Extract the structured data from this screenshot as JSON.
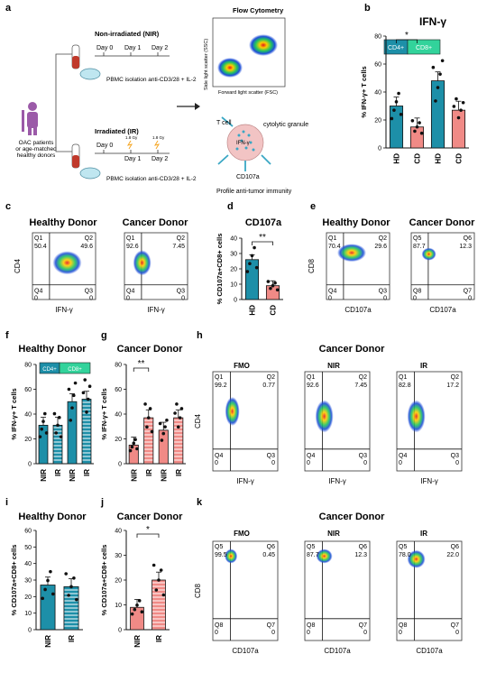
{
  "panel_letters": {
    "a": "a",
    "b": "b",
    "c": "c",
    "d": "d",
    "e": "e",
    "f": "f",
    "g": "g",
    "h": "h",
    "i": "i",
    "j": "j",
    "k": "k"
  },
  "panel_a": {
    "patients": "OAC patients\nor age-matched\nhealthy donors",
    "nir_title": "Non-irradiated (NIR)",
    "ir_title": "Irradiated (IR)",
    "days": [
      "Day 0",
      "Day 1",
      "Day 2"
    ],
    "dose": "1.8 Gy",
    "pbmc": "PBMC isolation anti-CD3/28 + IL-2",
    "flow_title": "Flow Cytometry",
    "ssc": "Side light scatter (SSC)",
    "fsc": "Forward light scatter (FSC)",
    "tcell": "T cell",
    "ifng": "IFN-γ",
    "granule": "cytolytic granule",
    "cd107a": "CD107a",
    "profile": "Profile anti-tumor immunity"
  },
  "texts": {
    "ifng_title": "IFN-γ",
    "healthy": "Healthy Donor",
    "cancer": "Cancer Donor",
    "cd107a_title": "CD107a",
    "cd4_tag": "CD4+",
    "cd8_tag": "CD8+",
    "fmo": "FMO",
    "nir": "NIR",
    "ir": "IR"
  },
  "flow_labels": {
    "q1": "Q1",
    "q2": "Q2",
    "q3": "Q3",
    "q4": "Q4",
    "q5": "Q5",
    "q6": "Q6",
    "q7": "Q7",
    "q8": "Q8",
    "cd4": "CD4",
    "cd8": "CD8",
    "ifng_axis": "IFN-γ",
    "cd107a_axis": "CD107a"
  },
  "flow_plots": {
    "c_hd": {
      "q1": "50.4",
      "q2": "49.6",
      "q3": "0",
      "q4": "0"
    },
    "c_cd": {
      "q1": "92.6",
      "q2": "7.45",
      "q3": "0",
      "q4": "0"
    },
    "e_hd": {
      "q1": "70.4",
      "q2": "29.6",
      "q3": "0",
      "q4": "0"
    },
    "e_cd": {
      "q1": "87.7",
      "q2": "12.3",
      "q3": "0",
      "q4": "0"
    },
    "h_fmo": {
      "q1": "99.2",
      "q2": "0.77",
      "q3": "0",
      "q4": "0"
    },
    "h_nir": {
      "q1": "92.6",
      "q2": "7.45",
      "q3": "0",
      "q4": "0"
    },
    "h_ir": {
      "q1": "82.8",
      "q2": "17.2",
      "q3": "0",
      "q4": "0"
    },
    "k_fmo": {
      "q1": "99.5",
      "q2": "0.45",
      "q3": "0",
      "q4": "0"
    },
    "k_nir": {
      "q1": "87.7",
      "q2": "12.3",
      "q3": "0",
      "q4": "0"
    },
    "k_ir": {
      "q1": "78.0",
      "q2": "22.0",
      "q3": "0",
      "q4": "0"
    }
  },
  "chart_data": [
    {
      "id": "b",
      "type": "bar",
      "title": "IFN-γ",
      "ylabel": "% IFN-γ+ T cells",
      "ylim": [
        0,
        80
      ],
      "yticks": [
        0,
        20,
        40,
        60,
        80
      ],
      "categories": [
        "HD",
        "CD",
        "HD",
        "CD"
      ],
      "groups": [
        "CD4+",
        "CD8+"
      ],
      "values": [
        30,
        15,
        48,
        27
      ],
      "colors": [
        "#1d8fa8",
        "#f08a86",
        "#1d8fa8",
        "#f08a86"
      ],
      "significance": [
        "*"
      ]
    },
    {
      "id": "d",
      "type": "bar",
      "title": "CD107a",
      "ylabel": "% CD107a+CD8+ cells",
      "ylim": [
        0,
        40
      ],
      "yticks": [
        0,
        10,
        20,
        30,
        40
      ],
      "categories": [
        "HD",
        "CD"
      ],
      "values": [
        26,
        9
      ],
      "colors": [
        "#1d8fa8",
        "#f08a86"
      ],
      "significance": [
        "**"
      ]
    },
    {
      "id": "f",
      "type": "bar",
      "title": "Healthy Donor",
      "ylabel": "% IFN-γ+ T cells",
      "ylim": [
        0,
        80
      ],
      "yticks": [
        0,
        20,
        40,
        60,
        80
      ],
      "categories": [
        "NIR",
        "IR",
        "NIR",
        "IR"
      ],
      "groups": [
        "CD4+",
        "CD8+"
      ],
      "values": [
        31,
        31,
        50,
        52
      ],
      "colors": [
        "#1d8fa8",
        "#1d8fa8",
        "#1d8fa8",
        "#1d8fa8"
      ],
      "hatch": [
        false,
        true,
        false,
        true
      ]
    },
    {
      "id": "g",
      "type": "bar",
      "title": "Cancer Donor",
      "ylabel": "% IFN-γ+ T cells",
      "ylim": [
        0,
        80
      ],
      "yticks": [
        0,
        20,
        40,
        60,
        80
      ],
      "categories": [
        "NIR",
        "IR",
        "NIR",
        "IR"
      ],
      "values": [
        15,
        37,
        27,
        37
      ],
      "colors": [
        "#f08a86",
        "#f08a86",
        "#f08a86",
        "#f08a86"
      ],
      "hatch": [
        false,
        true,
        false,
        true
      ],
      "significance": [
        "**"
      ]
    },
    {
      "id": "i",
      "type": "bar",
      "title": "Healthy Donor",
      "ylabel": "% CD107a+CD8+ cells",
      "ylim": [
        0,
        60
      ],
      "yticks": [
        0,
        10,
        20,
        30,
        40,
        50,
        60
      ],
      "categories": [
        "NIR",
        "IR"
      ],
      "values": [
        27,
        26
      ],
      "colors": [
        "#1d8fa8",
        "#1d8fa8"
      ],
      "hatch": [
        false,
        true
      ]
    },
    {
      "id": "j",
      "type": "bar",
      "title": "Cancer Donor",
      "ylabel": "% CD107a+CD8+ cells",
      "ylim": [
        0,
        40
      ],
      "yticks": [
        0,
        10,
        20,
        30,
        40
      ],
      "categories": [
        "NIR",
        "IR"
      ],
      "values": [
        9,
        20
      ],
      "colors": [
        "#f08a86",
        "#f08a86"
      ],
      "hatch": [
        false,
        true
      ],
      "significance": [
        "*"
      ]
    }
  ]
}
